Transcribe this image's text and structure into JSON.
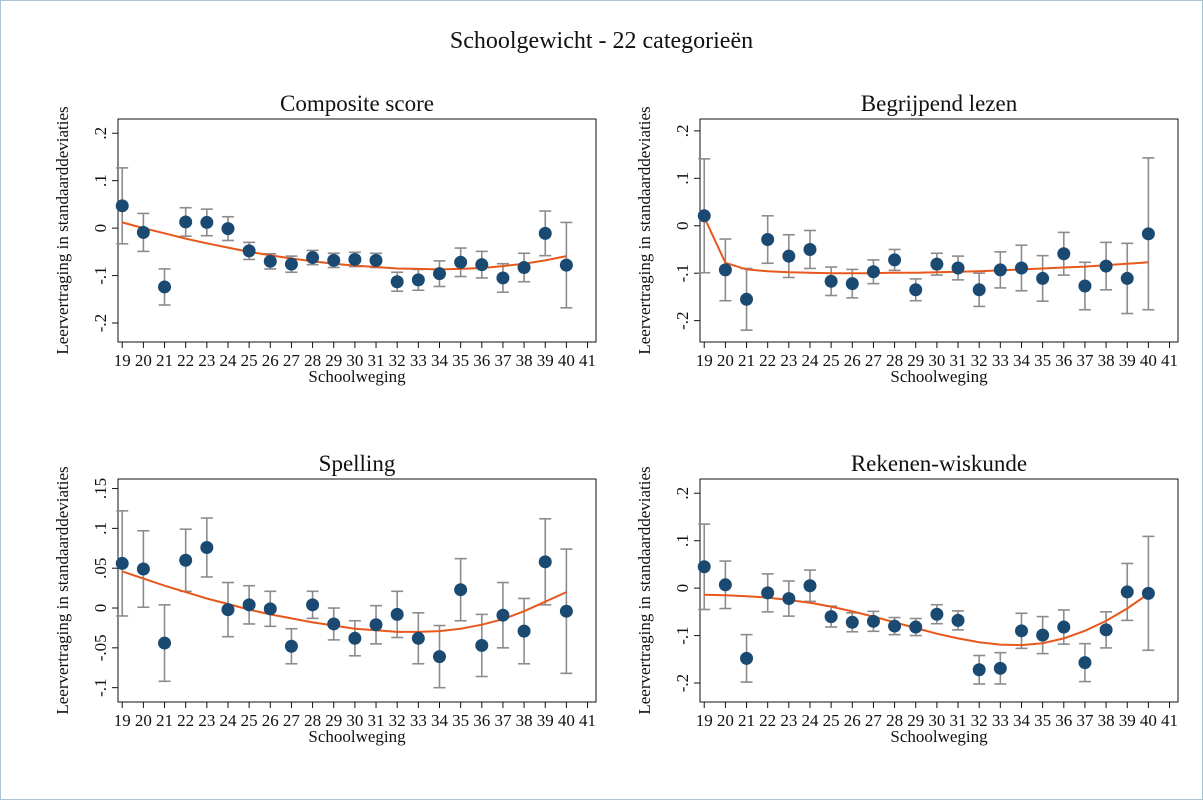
{
  "figure": {
    "title": "Schoolgewicht - 22 categorieën"
  },
  "style": {
    "point_color": "#1a4a72",
    "ci_color": "#8c8c8c",
    "fit_color": "#e8581c"
  },
  "chart_data": [
    {
      "type": "scatter",
      "title": "Composite score",
      "xlabel": "Schoolweging",
      "ylabel": "Leervertraging in standaarddeviaties",
      "xticks": [
        19,
        20,
        21,
        22,
        23,
        24,
        25,
        26,
        27,
        28,
        29,
        30,
        31,
        32,
        33,
        34,
        35,
        36,
        37,
        38,
        39,
        40,
        41
      ],
      "xlim": [
        18.8,
        41.4
      ],
      "yticks": [
        -0.2,
        -0.1,
        0,
        0.1,
        0.2
      ],
      "ytick_labels": [
        "-.2",
        "-.1",
        "0",
        ".1",
        ".2"
      ],
      "ylim": [
        -0.24,
        0.23
      ],
      "x": [
        19,
        20,
        21,
        22,
        23,
        24,
        25,
        26,
        27,
        28,
        29,
        30,
        31,
        32,
        33,
        34,
        35,
        36,
        37,
        38,
        39,
        40
      ],
      "y": [
        0.047,
        -0.009,
        -0.124,
        0.013,
        0.012,
        -0.001,
        -0.048,
        -0.07,
        -0.076,
        -0.062,
        -0.068,
        -0.066,
        -0.068,
        -0.113,
        -0.109,
        -0.096,
        -0.072,
        -0.077,
        -0.105,
        -0.083,
        -0.011,
        -0.078
      ],
      "ci_low": [
        -0.033,
        -0.049,
        -0.162,
        -0.017,
        -0.016,
        -0.026,
        -0.066,
        -0.086,
        -0.093,
        -0.077,
        -0.083,
        -0.081,
        -0.083,
        -0.133,
        -0.131,
        -0.123,
        -0.102,
        -0.105,
        -0.135,
        -0.113,
        -0.058,
        -0.168
      ],
      "ci_high": [
        0.127,
        0.031,
        -0.086,
        0.043,
        0.04,
        0.024,
        -0.03,
        -0.054,
        -0.059,
        -0.047,
        -0.053,
        -0.051,
        -0.053,
        -0.093,
        -0.087,
        -0.069,
        -0.042,
        -0.049,
        -0.075,
        -0.053,
        0.036,
        0.012
      ],
      "fit": [
        0.012,
        0.0,
        -0.011,
        -0.022,
        -0.032,
        -0.041,
        -0.05,
        -0.057,
        -0.064,
        -0.07,
        -0.075,
        -0.079,
        -0.082,
        -0.085,
        -0.086,
        -0.087,
        -0.086,
        -0.084,
        -0.08,
        -0.075,
        -0.068,
        -0.059
      ]
    },
    {
      "type": "scatter",
      "title": "Begrijpend lezen",
      "xlabel": "Schoolweging",
      "ylabel": "Leervertraging in standaarddeviaties",
      "xticks": [
        19,
        20,
        21,
        22,
        23,
        24,
        25,
        26,
        27,
        28,
        29,
        30,
        31,
        32,
        33,
        34,
        35,
        36,
        37,
        38,
        39,
        40,
        41
      ],
      "xlim": [
        18.8,
        41.4
      ],
      "yticks": [
        -0.2,
        -0.1,
        0,
        0.1,
        0.2
      ],
      "ytick_labels": [
        "-.2",
        "-.1",
        "0",
        ".1",
        ".2"
      ],
      "ylim": [
        -0.245,
        0.225
      ],
      "x": [
        19,
        20,
        21,
        22,
        23,
        24,
        25,
        26,
        27,
        28,
        29,
        30,
        31,
        32,
        33,
        34,
        35,
        36,
        37,
        38,
        39,
        40
      ],
      "y": [
        0.021,
        -0.093,
        -0.155,
        -0.029,
        -0.064,
        -0.05,
        -0.117,
        -0.122,
        -0.097,
        -0.072,
        -0.135,
        -0.081,
        -0.089,
        -0.135,
        -0.093,
        -0.089,
        -0.111,
        -0.059,
        -0.127,
        -0.085,
        -0.111,
        -0.017
      ],
      "ci_low": [
        -0.099,
        -0.158,
        -0.22,
        -0.079,
        -0.109,
        -0.09,
        -0.147,
        -0.152,
        -0.122,
        -0.094,
        -0.158,
        -0.104,
        -0.114,
        -0.17,
        -0.131,
        -0.137,
        -0.159,
        -0.104,
        -0.177,
        -0.135,
        -0.185,
        -0.177
      ],
      "ci_high": [
        0.141,
        -0.028,
        -0.09,
        0.021,
        -0.019,
        -0.01,
        -0.087,
        -0.092,
        -0.072,
        -0.05,
        -0.112,
        -0.058,
        -0.064,
        -0.1,
        -0.055,
        -0.041,
        -0.063,
        -0.014,
        -0.077,
        -0.035,
        -0.037,
        0.143
      ],
      "fit": [
        0.018,
        -0.078,
        -0.092,
        -0.096,
        -0.098,
        -0.099,
        -0.1,
        -0.1,
        -0.1,
        -0.099,
        -0.099,
        -0.098,
        -0.097,
        -0.096,
        -0.094,
        -0.092,
        -0.09,
        -0.088,
        -0.086,
        -0.083,
        -0.08,
        -0.077
      ]
    },
    {
      "type": "scatter",
      "title": "Spelling",
      "xlabel": "Schoolweging",
      "ylabel": "Leervertraging in standaarddeviaties",
      "xticks": [
        19,
        20,
        21,
        22,
        23,
        24,
        25,
        26,
        27,
        28,
        29,
        30,
        31,
        32,
        33,
        34,
        35,
        36,
        37,
        38,
        39,
        40,
        41
      ],
      "xlim": [
        18.8,
        41.4
      ],
      "yticks": [
        -0.1,
        -0.05,
        0,
        0.05,
        0.1,
        0.15
      ],
      "ytick_labels": [
        "-.1",
        "-.05",
        "0",
        ".05",
        ".1",
        ".15"
      ],
      "ylim": [
        -0.118,
        0.162
      ],
      "x": [
        19,
        20,
        21,
        22,
        23,
        24,
        25,
        26,
        27,
        28,
        29,
        30,
        31,
        32,
        33,
        34,
        35,
        36,
        37,
        38,
        39,
        40
      ],
      "y": [
        0.056,
        0.049,
        -0.044,
        0.06,
        0.076,
        -0.002,
        0.004,
        -0.001,
        -0.048,
        0.004,
        -0.02,
        -0.038,
        -0.021,
        -0.008,
        -0.038,
        -0.061,
        0.023,
        -0.047,
        -0.009,
        -0.029,
        0.058,
        -0.004
      ],
      "ci_low": [
        -0.01,
        0.001,
        -0.092,
        0.021,
        0.039,
        -0.036,
        -0.02,
        -0.023,
        -0.07,
        -0.013,
        -0.04,
        -0.06,
        -0.045,
        -0.037,
        -0.07,
        -0.1,
        -0.016,
        -0.086,
        -0.05,
        -0.07,
        0.004,
        -0.082
      ],
      "ci_high": [
        0.122,
        0.097,
        0.004,
        0.099,
        0.113,
        0.032,
        0.028,
        0.021,
        -0.026,
        0.021,
        0.0,
        -0.016,
        0.003,
        0.021,
        -0.006,
        -0.022,
        0.062,
        -0.008,
        0.032,
        0.012,
        0.112,
        0.074
      ],
      "fit": [
        0.046,
        0.037,
        0.028,
        0.02,
        0.012,
        0.005,
        -0.002,
        -0.008,
        -0.013,
        -0.018,
        -0.022,
        -0.026,
        -0.028,
        -0.03,
        -0.03,
        -0.029,
        -0.026,
        -0.021,
        -0.014,
        -0.004,
        0.008,
        0.02
      ]
    },
    {
      "type": "scatter",
      "title": "Rekenen-wiskunde",
      "xlabel": "Schoolweging",
      "ylabel": "Leervertraging in standaarddeviaties",
      "xticks": [
        19,
        20,
        21,
        22,
        23,
        24,
        25,
        26,
        27,
        28,
        29,
        30,
        31,
        32,
        33,
        34,
        35,
        36,
        37,
        38,
        39,
        40,
        41
      ],
      "xlim": [
        18.8,
        41.4
      ],
      "yticks": [
        -0.2,
        -0.1,
        0,
        0.1,
        0.2
      ],
      "ytick_labels": [
        "-.2",
        "-.1",
        "0",
        ".1",
        ".2"
      ],
      "ylim": [
        -0.24,
        0.23
      ],
      "x": [
        19,
        20,
        21,
        22,
        23,
        24,
        25,
        26,
        27,
        28,
        29,
        30,
        31,
        32,
        33,
        34,
        35,
        36,
        37,
        38,
        39,
        40
      ],
      "y": [
        0.045,
        0.007,
        -0.148,
        -0.01,
        -0.022,
        0.005,
        -0.06,
        -0.072,
        -0.07,
        -0.08,
        -0.082,
        -0.055,
        -0.068,
        -0.172,
        -0.169,
        -0.09,
        -0.099,
        -0.082,
        -0.157,
        -0.088,
        -0.008,
        -0.011
      ],
      "ci_low": [
        -0.045,
        -0.043,
        -0.198,
        -0.05,
        -0.059,
        -0.028,
        -0.082,
        -0.092,
        -0.091,
        -0.098,
        -0.1,
        -0.075,
        -0.088,
        -0.202,
        -0.202,
        -0.127,
        -0.138,
        -0.118,
        -0.197,
        -0.126,
        -0.068,
        -0.131
      ],
      "ci_high": [
        0.135,
        0.057,
        -0.098,
        0.03,
        0.015,
        0.038,
        -0.038,
        -0.052,
        -0.049,
        -0.062,
        -0.064,
        -0.035,
        -0.048,
        -0.142,
        -0.136,
        -0.053,
        -0.06,
        -0.046,
        -0.117,
        -0.05,
        0.052,
        0.109
      ],
      "fit": [
        -0.014,
        -0.015,
        -0.017,
        -0.02,
        -0.025,
        -0.031,
        -0.039,
        -0.049,
        -0.06,
        -0.072,
        -0.084,
        -0.096,
        -0.106,
        -0.114,
        -0.119,
        -0.12,
        -0.116,
        -0.106,
        -0.09,
        -0.069,
        -0.043,
        -0.012
      ]
    }
  ]
}
